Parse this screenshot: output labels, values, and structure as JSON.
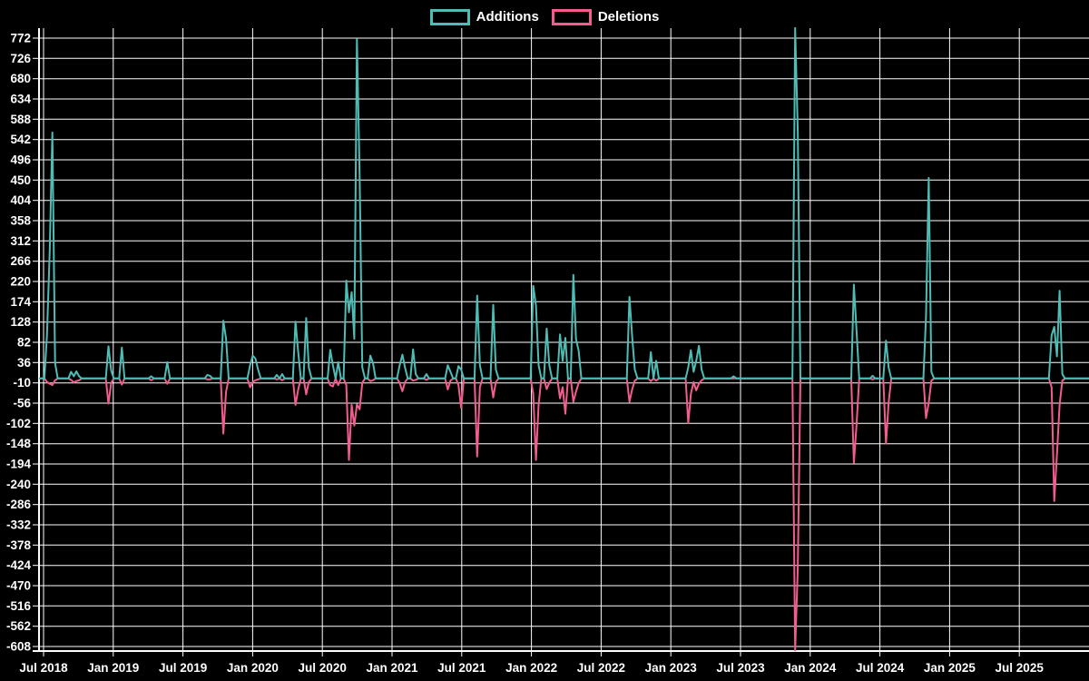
{
  "legend": {
    "items": [
      {
        "label": "Additions",
        "color": "#4dbdb5"
      },
      {
        "label": "Deletions",
        "color": "#f25d8e"
      }
    ]
  },
  "colors": {
    "background": "#000000",
    "grid": "#ffffff",
    "text": "#ffffff",
    "additions": "#4dbdb5",
    "deletions": "#f25d8e"
  },
  "chart_data": {
    "type": "line",
    "title": "",
    "xlabel": "",
    "ylabel": "",
    "grid": true,
    "legend_position": "top-center",
    "x_tick_labels": [
      "Jul 2018",
      "Jan 2019",
      "Jul 2019",
      "Jan 2020",
      "Jul 2020",
      "Jan 2021",
      "Jul 2021",
      "Jan 2022",
      "Jul 2022",
      "Jan 2023",
      "Jul 2023",
      "Jan 2024",
      "Jul 2024",
      "Jan 2025",
      "Jul 2025"
    ],
    "y_ticks": [
      772,
      726,
      680,
      634,
      588,
      542,
      496,
      450,
      404,
      358,
      312,
      266,
      220,
      174,
      128,
      82,
      36,
      -10,
      -56,
      -102,
      -148,
      -194,
      -240,
      -286,
      -332,
      -378,
      -424,
      -470,
      -516,
      -562,
      -608
    ],
    "ylim": [
      -617,
      795
    ],
    "y_tick_step": 46,
    "series_names": [
      "Additions",
      "Deletions"
    ],
    "total_weeks": 394,
    "baseline_value": 0,
    "weeks_nonzero_comment": "[week_index, additions, deletions]; all other weeks are 0 for both series; week 0 = left edge (~mid-June 2018), ~26.09 weeks per half-year tick",
    "weeks_nonzero": [
      [
        3,
        100,
        -8
      ],
      [
        4,
        290,
        -12
      ],
      [
        5,
        558,
        -15
      ],
      [
        6,
        35,
        -4
      ],
      [
        12,
        15,
        -3
      ],
      [
        13,
        5,
        -9
      ],
      [
        14,
        16,
        -6
      ],
      [
        15,
        5,
        -4
      ],
      [
        26,
        73,
        -57
      ],
      [
        27,
        18,
        -10
      ],
      [
        31,
        70,
        -14
      ],
      [
        42,
        5,
        -4
      ],
      [
        48,
        37,
        -12
      ],
      [
        63,
        8,
        -2
      ],
      [
        64,
        6,
        -2
      ],
      [
        69,
        131,
        -125
      ],
      [
        70,
        90,
        -30
      ],
      [
        79,
        30,
        -20
      ],
      [
        80,
        52,
        -8
      ],
      [
        81,
        45,
        -4
      ],
      [
        82,
        20,
        -2
      ],
      [
        89,
        8,
        -2
      ],
      [
        91,
        10,
        -4
      ],
      [
        96,
        129,
        -60
      ],
      [
        97,
        60,
        -25
      ],
      [
        100,
        137,
        -36
      ],
      [
        101,
        25,
        -8
      ],
      [
        109,
        65,
        -15
      ],
      [
        110,
        30,
        -18
      ],
      [
        112,
        37,
        -15
      ],
      [
        115,
        222,
        -15
      ],
      [
        116,
        150,
        -185
      ],
      [
        117,
        196,
        -60
      ],
      [
        118,
        90,
        -107
      ],
      [
        119,
        770,
        -59
      ],
      [
        120,
        460,
        -70
      ],
      [
        121,
        25,
        -10
      ],
      [
        124,
        52,
        -6
      ],
      [
        125,
        35,
        -4
      ],
      [
        135,
        30,
        -10
      ],
      [
        136,
        54,
        -29
      ],
      [
        137,
        25,
        -8
      ],
      [
        140,
        66,
        -5
      ],
      [
        141,
        10,
        -3
      ],
      [
        145,
        10,
        -3
      ],
      [
        153,
        30,
        -25
      ],
      [
        154,
        15,
        -5
      ],
      [
        157,
        28,
        -15
      ],
      [
        158,
        20,
        -67
      ],
      [
        164,
        188,
        -177
      ],
      [
        165,
        30,
        -20
      ],
      [
        170,
        167,
        -43
      ],
      [
        171,
        20,
        -8
      ],
      [
        185,
        210,
        -35
      ],
      [
        186,
        165,
        -185
      ],
      [
        187,
        30,
        -60
      ],
      [
        190,
        113,
        -24
      ],
      [
        191,
        30,
        -10
      ],
      [
        195,
        100,
        -45
      ],
      [
        196,
        40,
        -20
      ],
      [
        197,
        92,
        -80
      ],
      [
        200,
        235,
        -53
      ],
      [
        201,
        90,
        -30
      ],
      [
        202,
        62,
        -10
      ],
      [
        221,
        185,
        -53
      ],
      [
        222,
        95,
        -25
      ],
      [
        223,
        20,
        -5
      ],
      [
        229,
        60,
        -6
      ],
      [
        231,
        40,
        -5
      ],
      [
        243,
        25,
        -101
      ],
      [
        244,
        64,
        -35
      ],
      [
        245,
        15,
        -8
      ],
      [
        246,
        40,
        -27
      ],
      [
        247,
        74,
        -12
      ],
      [
        248,
        20,
        -4
      ],
      [
        260,
        5,
        0
      ],
      [
        283,
        795,
        -617
      ],
      [
        284,
        560,
        -430
      ],
      [
        305,
        213,
        -192
      ],
      [
        306,
        106,
        -103
      ],
      [
        312,
        6,
        -2
      ],
      [
        317,
        86,
        -148
      ],
      [
        318,
        25,
        -55
      ],
      [
        332,
        140,
        -90
      ],
      [
        333,
        455,
        -55
      ],
      [
        334,
        15,
        -5
      ],
      [
        379,
        98,
        -20
      ],
      [
        380,
        117,
        -278
      ],
      [
        381,
        50,
        -172
      ],
      [
        382,
        199,
        -60
      ],
      [
        383,
        10,
        -5
      ]
    ]
  }
}
